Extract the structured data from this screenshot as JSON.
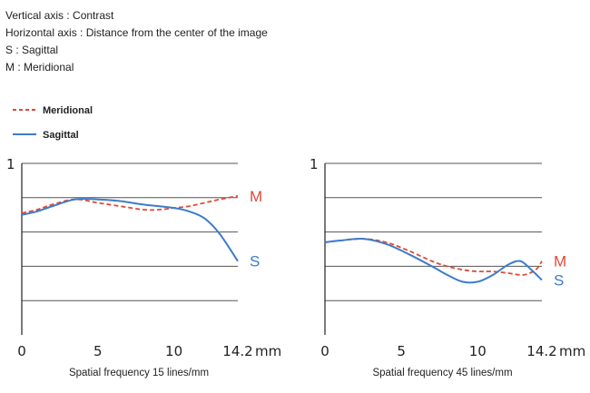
{
  "notes": [
    "Vertical axis : Contrast",
    "Horizontal axis : Distance from the center of the image",
    "S : Sagittal",
    "M : Meridional"
  ],
  "legend": {
    "meridional": "Meridional",
    "sagittal": "Sagittal"
  },
  "colors": {
    "meridional": "#dd4a38",
    "sagittal": "#3d7cc9",
    "grid": "#555555",
    "axis": "#222222"
  },
  "chart_data": [
    {
      "type": "line",
      "title": "Spatial frequency 15 lines/mm",
      "xlabel": "mm",
      "ylabel": "",
      "xlim": [
        0,
        14.2
      ],
      "ylim": [
        0,
        1
      ],
      "x_ticks": [
        "0",
        "5",
        "10",
        "14.2"
      ],
      "y_tick_label": "1",
      "gridlines_y": [
        0.2,
        0.4,
        0.6,
        0.8,
        1.0
      ],
      "end_labels": {
        "meridional": "M",
        "sagittal": "S"
      },
      "series": [
        {
          "key": "meridional",
          "name": "M",
          "style": "dashed",
          "points": [
            [
              0,
              0.71
            ],
            [
              1,
              0.73
            ],
            [
              2,
              0.76
            ],
            [
              3.5,
              0.79
            ],
            [
              5,
              0.77
            ],
            [
              6.5,
              0.75
            ],
            [
              8,
              0.73
            ],
            [
              9,
              0.73
            ],
            [
              10,
              0.74
            ],
            [
              11,
              0.75
            ],
            [
              12,
              0.77
            ],
            [
              13,
              0.79
            ],
            [
              14.2,
              0.81
            ]
          ]
        },
        {
          "key": "sagittal",
          "name": "S",
          "style": "solid",
          "points": [
            [
              0,
              0.7
            ],
            [
              1,
              0.72
            ],
            [
              2,
              0.75
            ],
            [
              3.5,
              0.79
            ],
            [
              5,
              0.79
            ],
            [
              6.5,
              0.78
            ],
            [
              8,
              0.76
            ],
            [
              10,
              0.74
            ],
            [
              11,
              0.72
            ],
            [
              12,
              0.68
            ],
            [
              13,
              0.59
            ],
            [
              14.2,
              0.43
            ]
          ]
        }
      ]
    },
    {
      "type": "line",
      "title": "Spatial frequency 45 lines/mm",
      "xlabel": "mm",
      "ylabel": "",
      "xlim": [
        0,
        14.2
      ],
      "ylim": [
        0,
        1
      ],
      "x_ticks": [
        "0",
        "5",
        "10",
        "14.2"
      ],
      "y_tick_label": "1",
      "gridlines_y": [
        0.2,
        0.4,
        0.6,
        0.8,
        1.0
      ],
      "end_labels": {
        "meridional": "M",
        "sagittal": "S"
      },
      "series": [
        {
          "key": "meridional",
          "name": "M",
          "style": "dashed",
          "points": [
            [
              0,
              0.54
            ],
            [
              1,
              0.55
            ],
            [
              2.5,
              0.56
            ],
            [
              4,
              0.54
            ],
            [
              5.5,
              0.49
            ],
            [
              7,
              0.43
            ],
            [
              8,
              0.4
            ],
            [
              9,
              0.38
            ],
            [
              10,
              0.37
            ],
            [
              11,
              0.37
            ],
            [
              12,
              0.36
            ],
            [
              13,
              0.35
            ],
            [
              13.8,
              0.38
            ],
            [
              14.2,
              0.43
            ]
          ]
        },
        {
          "key": "sagittal",
          "name": "S",
          "style": "solid",
          "points": [
            [
              0,
              0.54
            ],
            [
              1,
              0.55
            ],
            [
              2.5,
              0.56
            ],
            [
              4,
              0.53
            ],
            [
              5.5,
              0.47
            ],
            [
              7,
              0.4
            ],
            [
              8,
              0.35
            ],
            [
              9,
              0.31
            ],
            [
              10,
              0.31
            ],
            [
              11,
              0.35
            ],
            [
              12,
              0.41
            ],
            [
              12.8,
              0.43
            ],
            [
              13.5,
              0.38
            ],
            [
              14.2,
              0.32
            ]
          ]
        }
      ]
    }
  ]
}
